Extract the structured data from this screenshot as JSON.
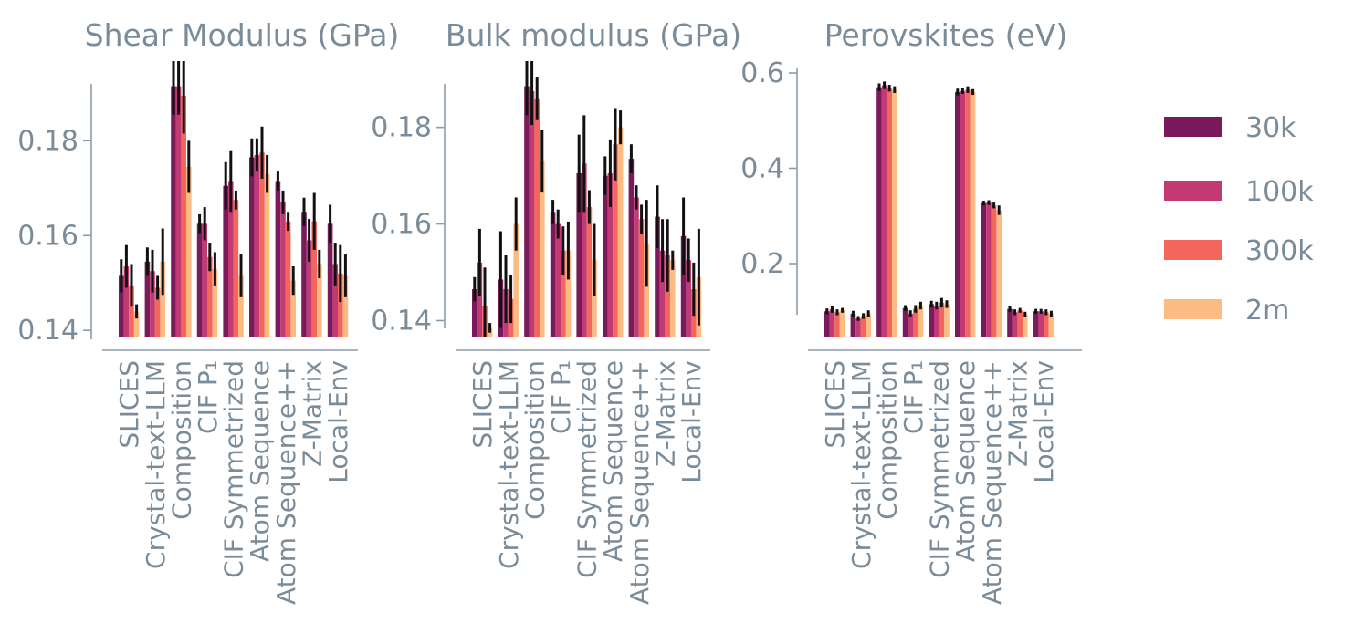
{
  "legend": [
    {
      "label": "30k",
      "color": "#7a1a5a"
    },
    {
      "label": "100k",
      "color": "#c23a73"
    },
    {
      "label": "300k",
      "color": "#f2665e"
    },
    {
      "label": "2m",
      "color": "#fdbb84"
    }
  ],
  "chart_data": [
    {
      "type": "bar",
      "title": "Shear Modulus (GPa)",
      "xlabel": "",
      "ylabel": "",
      "ylim": [
        0.1385,
        0.192
      ],
      "yticks": [
        0.14,
        0.16,
        0.18
      ],
      "ytick_labels": [
        "0.14",
        "0.16",
        "0.18"
      ],
      "grid": false,
      "categories": [
        "SLICES",
        "Crystal-text-LLM",
        "Composition",
        "CIF P₁",
        "CIF Symmetrized",
        "Atom Sequence",
        "Atom Sequence++",
        "Z-Matrix",
        "Local-Env"
      ],
      "series": [
        {
          "name": "30k",
          "values": [
            0.1515,
            0.1545,
            0.1915,
            0.1625,
            0.1705,
            0.1765,
            0.1715,
            0.165,
            0.1625
          ],
          "errors": [
            0.0035,
            0.003,
            0.006,
            0.002,
            0.005,
            0.004,
            0.002,
            0.003,
            0.004
          ]
        },
        {
          "name": "100k",
          "values": [
            0.1535,
            0.1525,
            0.1915,
            0.1625,
            0.1715,
            0.177,
            0.167,
            0.159,
            0.154
          ],
          "errors": [
            0.0045,
            0.0045,
            0.006,
            0.0035,
            0.0065,
            0.0035,
            0.0025,
            0.0045,
            0.0045
          ]
        },
        {
          "name": "300k",
          "values": [
            0.1495,
            0.149,
            0.1895,
            0.1555,
            0.1675,
            0.1775,
            0.163,
            0.163,
            0.152
          ],
          "errors": [
            0.0045,
            0.0025,
            0.008,
            0.003,
            0.002,
            0.0055,
            0.002,
            0.006,
            0.006
          ]
        },
        {
          "name": "2m",
          "values": [
            0.144,
            0.1545,
            0.1745,
            0.153,
            0.1515,
            0.173,
            0.1505,
            0.154,
            0.1515
          ],
          "errors": [
            0.0015,
            0.007,
            0.0055,
            0.0035,
            0.0045,
            0.004,
            0.003,
            0.003,
            0.0045
          ]
        }
      ]
    },
    {
      "type": "bar",
      "title": "Bulk modulus (GPa)",
      "xlabel": "",
      "ylabel": "",
      "ylim": [
        0.1365,
        0.189
      ],
      "yticks": [
        0.14,
        0.16,
        0.18
      ],
      "ytick_labels": [
        "0.14",
        "0.16",
        "0.18"
      ],
      "grid": false,
      "categories": [
        "SLICES",
        "Crystal-text-LLM",
        "Composition",
        "CIF P₁",
        "CIF Symmetrized",
        "Atom Sequence",
        "Atom Sequence++",
        "Z-Matrix",
        "Local-Env"
      ],
      "series": [
        {
          "name": "30k",
          "values": [
            0.1465,
            0.1485,
            0.1885,
            0.1625,
            0.1705,
            0.17,
            0.1735,
            0.1615,
            0.1575
          ],
          "errors": [
            0.0025,
            0.01,
            0.006,
            0.0025,
            0.008,
            0.004,
            0.003,
            0.0065,
            0.008
          ]
        },
        {
          "name": "100k",
          "values": [
            0.152,
            0.1465,
            0.1875,
            0.16,
            0.1725,
            0.1705,
            0.1655,
            0.1545,
            0.1525
          ],
          "errors": [
            0.007,
            0.007,
            0.007,
            0.003,
            0.01,
            0.007,
            0.0025,
            0.0065,
            0.0045
          ]
        },
        {
          "name": "300k",
          "values": [
            0.143,
            0.1445,
            0.186,
            0.1545,
            0.1635,
            0.1765,
            0.161,
            0.1535,
            0.1465
          ],
          "errors": [
            0.008,
            0.005,
            0.0045,
            0.005,
            0.0035,
            0.0075,
            0.003,
            0.0075,
            0.0055
          ]
        },
        {
          "name": "2m",
          "values": [
            0.1385,
            0.16,
            0.173,
            0.1545,
            0.1525,
            0.18,
            0.156,
            0.1525,
            0.149
          ],
          "errors": [
            0.001,
            0.0055,
            0.0065,
            0.006,
            0.0075,
            0.0035,
            0.009,
            0.002,
            0.01
          ]
        }
      ]
    },
    {
      "type": "bar",
      "title": "Perovskites (eV)",
      "xlabel": "",
      "ylabel": "",
      "ylim": [
        0.045,
        0.6
      ],
      "yticks": [
        0.2,
        0.4,
        0.6
      ],
      "ytick_labels": [
        "0.2",
        "0.4",
        "0.6"
      ],
      "grid": false,
      "categories": [
        "SLICES",
        "Crystal-text-LLM",
        "Composition",
        "CIF P₁",
        "CIF Symmetrized",
        "Atom Sequence",
        "Atom Sequence++",
        "Z-Matrix",
        "Local-Env"
      ],
      "series": [
        {
          "name": "30k",
          "values": [
            0.1,
            0.095,
            0.57,
            0.107,
            0.115,
            0.56,
            0.327,
            0.105,
            0.1
          ],
          "errors": [
            0.006,
            0.006,
            0.008,
            0.006,
            0.007,
            0.007,
            0.005,
            0.006,
            0.005
          ]
        },
        {
          "name": "100k",
          "values": [
            0.104,
            0.085,
            0.574,
            0.095,
            0.112,
            0.562,
            0.328,
            0.098,
            0.1
          ],
          "errors": [
            0.007,
            0.005,
            0.008,
            0.007,
            0.008,
            0.006,
            0.005,
            0.006,
            0.005
          ]
        },
        {
          "name": "300k",
          "values": [
            0.098,
            0.09,
            0.568,
            0.105,
            0.118,
            0.565,
            0.322,
            0.102,
            0.098
          ],
          "errors": [
            0.006,
            0.006,
            0.007,
            0.008,
            0.01,
            0.007,
            0.006,
            0.005,
            0.006
          ]
        },
        {
          "name": "2m",
          "values": [
            0.102,
            0.095,
            0.565,
            0.112,
            0.115,
            0.56,
            0.312,
            0.094,
            0.095
          ],
          "errors": [
            0.005,
            0.007,
            0.007,
            0.008,
            0.008,
            0.006,
            0.01,
            0.005,
            0.006
          ]
        }
      ]
    }
  ]
}
